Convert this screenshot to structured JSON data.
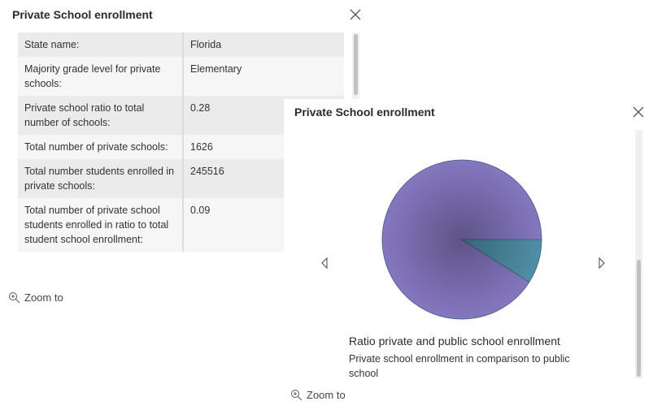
{
  "popup1": {
    "title": "Private School enrollment",
    "rows": [
      [
        "State name:",
        "Florida"
      ],
      [
        "Majority grade level for private schools:",
        "Elementary"
      ],
      [
        "Private school ratio to total number of schools:",
        "0.28"
      ],
      [
        "Total number of private schools:",
        "1626"
      ],
      [
        "Total number students enrolled in private schools:",
        "245516"
      ],
      [
        "Total number of private school students enrolled in ratio to total student school enrollment:",
        "0.09"
      ]
    ],
    "zoom": "Zoom to"
  },
  "popup2": {
    "title": "Private School enrollment",
    "chart": {
      "type": "pie",
      "values": [
        9,
        91
      ],
      "colors": [
        "#4f8fa8",
        "#8577c0"
      ]
    },
    "caption": "Ratio private and public school enrollment",
    "description": "Private school enrollment in comparison to public school",
    "zoom": "Zoom to"
  }
}
